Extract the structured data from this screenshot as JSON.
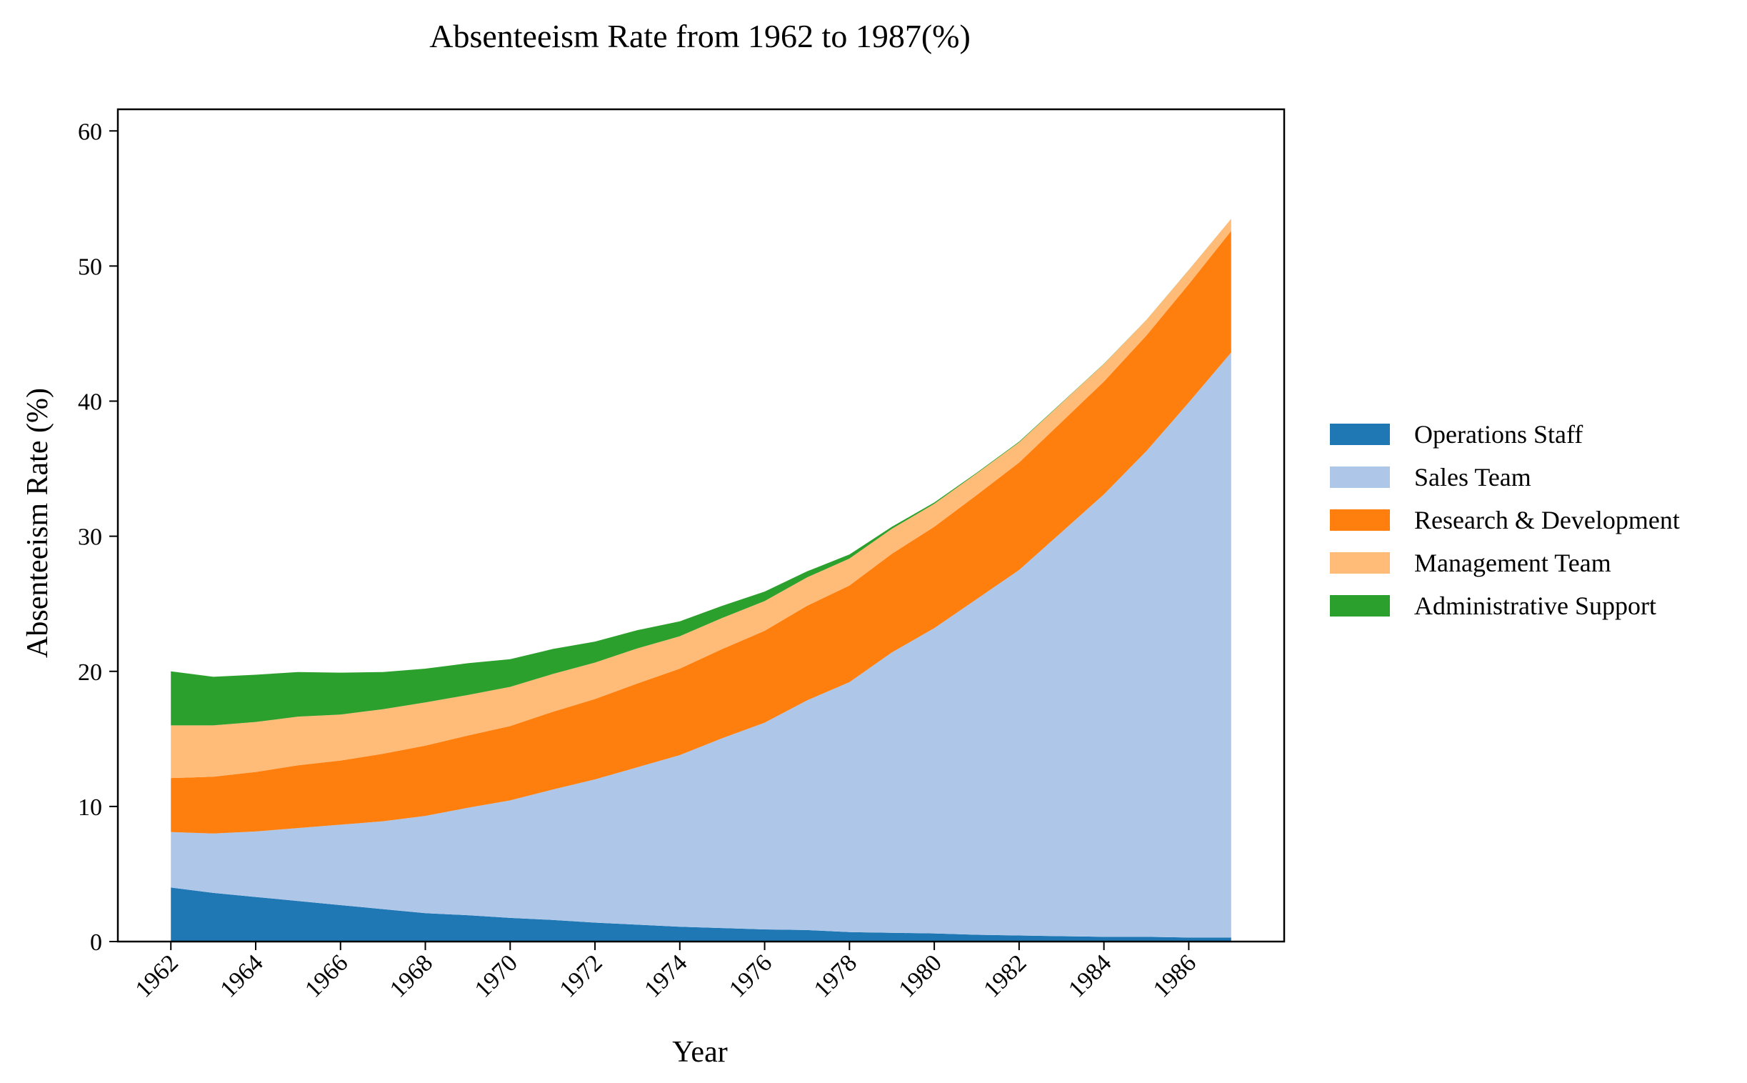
{
  "chart_data": {
    "type": "area",
    "stacked": true,
    "title": "Absenteeism Rate from 1962 to 1987(%)",
    "xlabel": "Year",
    "ylabel": "Absenteeism Rate (%)",
    "xlim": [
      1960.75,
      1988.25
    ],
    "ylim": [
      0,
      61.6
    ],
    "y_ticks": [
      0,
      10,
      20,
      30,
      40,
      50,
      60
    ],
    "x_ticks": [
      1962,
      1964,
      1966,
      1968,
      1970,
      1972,
      1974,
      1976,
      1978,
      1980,
      1982,
      1984,
      1986
    ],
    "legend_position": "right",
    "grid": false,
    "x": [
      1962,
      1963,
      1964,
      1965,
      1966,
      1967,
      1968,
      1969,
      1970,
      1971,
      1972,
      1973,
      1974,
      1975,
      1976,
      1977,
      1978,
      1979,
      1980,
      1981,
      1982,
      1983,
      1984,
      1985,
      1986,
      1987
    ],
    "series": [
      {
        "name": "Operations Staff",
        "color": "#1f77b4",
        "values": [
          4.0,
          3.6,
          3.3,
          3.0,
          2.7,
          2.4,
          2.1,
          1.95,
          1.75,
          1.6,
          1.4,
          1.25,
          1.1,
          1.0,
          0.9,
          0.85,
          0.7,
          0.65,
          0.6,
          0.5,
          0.45,
          0.4,
          0.35,
          0.35,
          0.3,
          0.3
        ]
      },
      {
        "name": "Sales Team",
        "color": "#aec7e8",
        "values": [
          4.1,
          4.4,
          4.85,
          5.4,
          5.95,
          6.5,
          7.2,
          7.95,
          8.7,
          9.65,
          10.6,
          11.65,
          12.7,
          14.05,
          15.3,
          17.0,
          18.5,
          20.75,
          22.6,
          24.85,
          27.05,
          29.9,
          32.75,
          35.95,
          39.6,
          43.3
        ]
      },
      {
        "name": "Research & Development",
        "color": "#ff7f0e",
        "values": [
          4.0,
          4.2,
          4.4,
          4.65,
          4.75,
          5.0,
          5.2,
          5.35,
          5.5,
          5.75,
          5.95,
          6.2,
          6.4,
          6.6,
          6.8,
          7.0,
          7.15,
          7.3,
          7.5,
          7.7,
          7.95,
          8.15,
          8.35,
          8.55,
          8.75,
          9.0
        ]
      },
      {
        "name": "Management Team",
        "color": "#ffbb78",
        "values": [
          3.9,
          3.8,
          3.7,
          3.6,
          3.4,
          3.3,
          3.2,
          3.0,
          2.9,
          2.8,
          2.7,
          2.6,
          2.4,
          2.3,
          2.2,
          2.1,
          2.0,
          1.85,
          1.7,
          1.6,
          1.5,
          1.4,
          1.3,
          1.15,
          1.05,
          0.9
        ]
      },
      {
        "name": "Administrative Support",
        "color": "#2ca02c",
        "values": [
          4.0,
          3.6,
          3.5,
          3.3,
          3.1,
          2.75,
          2.5,
          2.35,
          2.05,
          1.85,
          1.55,
          1.35,
          1.1,
          0.9,
          0.7,
          0.45,
          0.3,
          0.15,
          0.1,
          0.05,
          0.05,
          0.03,
          0.02,
          0.01,
          0.01,
          0.0
        ]
      }
    ]
  }
}
